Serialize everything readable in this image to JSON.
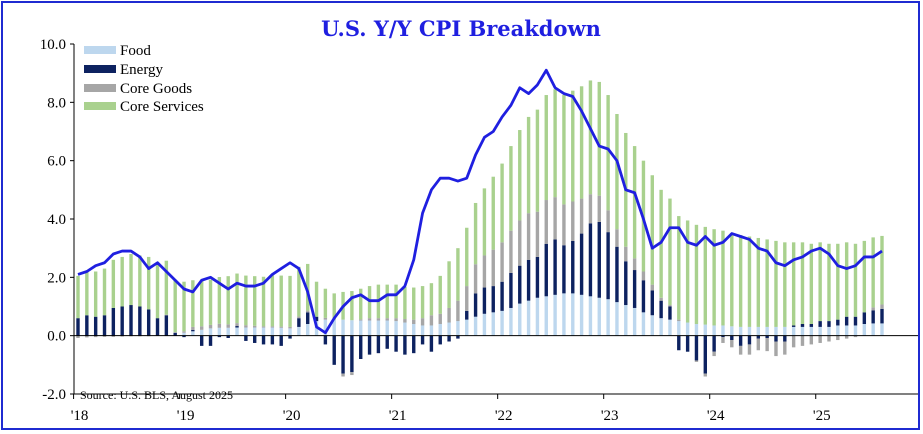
{
  "chart_data": {
    "type": "bar",
    "stacked": true,
    "title": "U.S. Y/Y CPI Breakdown",
    "source": "Source: U.S. BLS, August 2025",
    "ylim": [
      -2.0,
      10.0
    ],
    "yticks": [
      "10.0",
      "8.0",
      "6.0",
      "4.0",
      "2.0",
      "0.0",
      "-2.0"
    ],
    "ytick_values": [
      10,
      8,
      6,
      4,
      2,
      0,
      -2
    ],
    "xticks": [
      {
        "label": "'18",
        "index": 0
      },
      {
        "label": "'19",
        "index": 12
      },
      {
        "label": "'20",
        "index": 24
      },
      {
        "label": "'21",
        "index": 36
      },
      {
        "label": "'22",
        "index": 48
      },
      {
        "label": "'23",
        "index": 60
      },
      {
        "label": "'24",
        "index": 72
      },
      {
        "label": "'25",
        "index": 84
      }
    ],
    "n_months": 92,
    "legend": [
      "Food",
      "Energy",
      "Core Goods",
      "Core Services"
    ],
    "colors": {
      "Food": "#bdd7ee",
      "Energy": "#0d2260",
      "Core Goods": "#a6a6a6",
      "Core Services": "#a9d18e",
      "Headline": "#1f1fe0"
    },
    "series": [
      {
        "name": "Food",
        "values": [
          0.0,
          0.0,
          0.0,
          0.0,
          0.0,
          0.0,
          0.0,
          0.0,
          0.0,
          0.0,
          0.0,
          0.0,
          0.1,
          0.15,
          0.2,
          0.25,
          0.27,
          0.27,
          0.28,
          0.28,
          0.28,
          0.28,
          0.28,
          0.27,
          0.25,
          0.3,
          0.4,
          0.5,
          0.55,
          0.55,
          0.55,
          0.53,
          0.52,
          0.52,
          0.52,
          0.52,
          0.5,
          0.45,
          0.4,
          0.35,
          0.35,
          0.4,
          0.45,
          0.5,
          0.55,
          0.65,
          0.75,
          0.8,
          0.85,
          0.95,
          1.1,
          1.2,
          1.3,
          1.35,
          1.4,
          1.45,
          1.45,
          1.4,
          1.35,
          1.3,
          1.25,
          1.15,
          1.05,
          0.95,
          0.8,
          0.7,
          0.6,
          0.55,
          0.5,
          0.45,
          0.4,
          0.38,
          0.35,
          0.35,
          0.32,
          0.3,
          0.3,
          0.3,
          0.3,
          0.3,
          0.3,
          0.3,
          0.3,
          0.3,
          0.3,
          0.3,
          0.35,
          0.35,
          0.35,
          0.4,
          0.42,
          0.42
        ]
      },
      {
        "name": "Energy",
        "values": [
          0.6,
          0.7,
          0.65,
          0.7,
          0.95,
          1.0,
          1.05,
          1.0,
          0.9,
          0.6,
          0.7,
          0.1,
          -0.05,
          0.05,
          -0.35,
          -0.35,
          -0.05,
          -0.08,
          0.05,
          -0.18,
          -0.25,
          -0.3,
          -0.3,
          -0.35,
          -0.1,
          0.3,
          0.4,
          0.15,
          -0.3,
          -1.0,
          -1.3,
          -1.25,
          -0.8,
          -0.65,
          -0.6,
          -0.45,
          -0.55,
          -0.65,
          -0.6,
          -0.3,
          -0.55,
          -0.3,
          -0.2,
          -0.1,
          0.3,
          0.8,
          0.9,
          0.9,
          1.0,
          1.2,
          1.3,
          1.4,
          1.4,
          1.8,
          1.9,
          1.65,
          1.8,
          2.1,
          2.5,
          2.6,
          2.3,
          1.9,
          1.5,
          1.3,
          1.1,
          0.85,
          0.6,
          0.45,
          -0.5,
          -0.55,
          -0.85,
          -1.3,
          -0.55,
          -0.05,
          -0.15,
          -0.35,
          -0.3,
          -0.1,
          -0.08,
          -0.2,
          -0.2,
          0.05,
          0.1,
          0.1,
          0.2,
          0.2,
          0.2,
          0.3,
          0.3,
          0.4,
          0.45,
          0.5
        ]
      },
      {
        "name": "Core Goods",
        "values": [
          -0.08,
          -0.06,
          -0.05,
          -0.04,
          -0.04,
          -0.03,
          -0.02,
          -0.02,
          -0.02,
          0.0,
          0.02,
          0.02,
          0.05,
          0.1,
          0.12,
          0.12,
          0.14,
          0.12,
          0.1,
          0.08,
          0.06,
          0.04,
          0.04,
          0.04,
          0.05,
          0.06,
          0.06,
          0.0,
          0.06,
          0.0,
          -0.1,
          -0.1,
          0.04,
          0.08,
          0.08,
          0.08,
          0.1,
          0.12,
          0.15,
          0.25,
          0.35,
          0.35,
          0.5,
          0.7,
          0.85,
          1.0,
          1.1,
          1.25,
          1.35,
          1.45,
          1.55,
          1.6,
          1.55,
          1.5,
          1.45,
          1.4,
          1.35,
          1.2,
          1.0,
          0.9,
          0.75,
          0.6,
          0.5,
          0.4,
          0.3,
          0.2,
          0.1,
          0.05,
          0.05,
          0.0,
          -0.05,
          -0.1,
          -0.15,
          -0.2,
          -0.25,
          -0.3,
          -0.35,
          -0.4,
          -0.45,
          -0.5,
          -0.45,
          -0.4,
          -0.35,
          -0.3,
          -0.25,
          -0.2,
          -0.15,
          -0.1,
          -0.05,
          0.0,
          0.1,
          0.15
        ]
      },
      {
        "name": "Core Services",
        "values": [
          1.45,
          1.5,
          1.55,
          1.6,
          1.65,
          1.7,
          1.75,
          1.75,
          1.8,
          1.85,
          1.85,
          1.8,
          1.7,
          1.6,
          1.6,
          1.55,
          1.6,
          1.65,
          1.7,
          1.7,
          1.7,
          1.7,
          1.75,
          1.75,
          1.75,
          1.7,
          1.6,
          1.2,
          1.0,
          0.9,
          0.95,
          1.0,
          1.05,
          1.1,
          1.15,
          1.15,
          1.15,
          1.1,
          1.1,
          1.1,
          1.1,
          1.3,
          1.6,
          1.8,
          2.0,
          2.1,
          2.3,
          2.5,
          2.7,
          2.9,
          3.1,
          3.3,
          3.5,
          3.6,
          3.7,
          3.75,
          3.8,
          3.85,
          3.9,
          3.9,
          3.95,
          3.95,
          3.9,
          3.85,
          3.8,
          3.75,
          3.7,
          3.65,
          3.55,
          3.5,
          3.4,
          3.35,
          3.3,
          3.25,
          3.2,
          3.15,
          3.1,
          3.05,
          3.0,
          2.95,
          2.9,
          2.85,
          2.8,
          2.75,
          2.7,
          2.65,
          2.6,
          2.55,
          2.5,
          2.45,
          2.4,
          2.35
        ]
      },
      {
        "name": "Headline",
        "type": "line",
        "values": [
          2.1,
          2.2,
          2.4,
          2.5,
          2.8,
          2.9,
          2.9,
          2.7,
          2.3,
          2.5,
          2.2,
          1.9,
          1.6,
          1.5,
          1.9,
          2.0,
          1.8,
          1.6,
          1.8,
          1.7,
          1.7,
          1.8,
          2.1,
          2.3,
          2.5,
          2.3,
          1.5,
          0.3,
          0.1,
          0.6,
          1.0,
          1.3,
          1.4,
          1.2,
          1.2,
          1.4,
          1.4,
          1.7,
          2.6,
          4.2,
          5.0,
          5.4,
          5.4,
          5.3,
          5.4,
          6.2,
          6.8,
          7.0,
          7.5,
          7.9,
          8.5,
          8.3,
          8.6,
          9.1,
          8.5,
          8.3,
          8.2,
          7.7,
          7.1,
          6.5,
          6.4,
          6.0,
          5.0,
          4.9,
          4.0,
          3.0,
          3.2,
          3.7,
          3.7,
          3.2,
          3.1,
          3.4,
          3.1,
          3.2,
          3.5,
          3.4,
          3.3,
          3.0,
          2.9,
          2.5,
          2.4,
          2.6,
          2.7,
          2.9,
          3.0,
          2.8,
          2.4,
          2.3,
          2.4,
          2.7,
          2.7,
          2.9
        ]
      }
    ]
  }
}
